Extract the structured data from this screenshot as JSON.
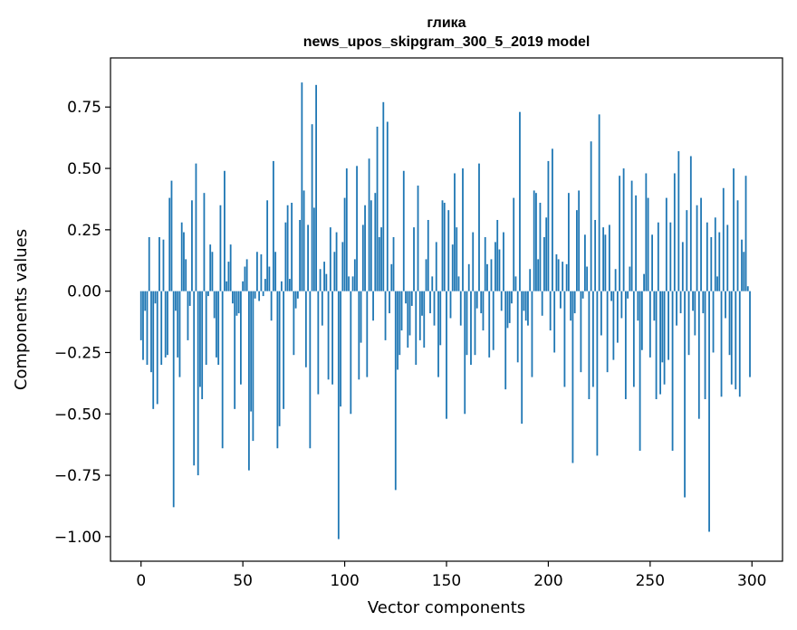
{
  "chart_data": {
    "type": "bar",
    "title": "глика",
    "subtitle": "news_upos_skipgram_300_5_2019 model",
    "xlabel": "Vector components",
    "ylabel": "Components values",
    "xlim": [
      -15,
      315
    ],
    "ylim": [
      -1.1,
      0.95
    ],
    "x_ticks": [
      0,
      50,
      100,
      150,
      200,
      250,
      300
    ],
    "x_tick_labels": [
      "0",
      "50",
      "100",
      "150",
      "200",
      "250",
      "300"
    ],
    "y_ticks": [
      0.75,
      0.5,
      0.25,
      0.0,
      -0.25,
      -0.5,
      -0.75,
      -1.0
    ],
    "y_tick_labels": [
      "0.75",
      "0.50",
      "0.25",
      "0.00",
      "−0.25",
      "−0.50",
      "−0.75",
      "−1.00"
    ],
    "grid": false,
    "bar_color": "#1f77b4",
    "x": "0..299 (component index)",
    "values": [
      -0.2,
      -0.28,
      -0.08,
      -0.3,
      0.22,
      -0.33,
      -0.48,
      -0.05,
      -0.46,
      0.22,
      -0.3,
      0.21,
      -0.27,
      -0.26,
      0.38,
      0.45,
      -0.88,
      -0.08,
      -0.27,
      -0.35,
      0.28,
      0.24,
      0.13,
      -0.2,
      -0.06,
      0.37,
      -0.71,
      0.52,
      -0.75,
      -0.39,
      -0.44,
      0.4,
      -0.3,
      -0.02,
      0.19,
      0.16,
      -0.11,
      -0.27,
      -0.3,
      0.35,
      -0.64,
      0.49,
      0.04,
      0.12,
      0.19,
      -0.05,
      -0.48,
      -0.1,
      -0.09,
      -0.38,
      0.04,
      0.1,
      0.13,
      -0.73,
      -0.49,
      -0.61,
      -0.03,
      0.16,
      -0.04,
      0.15,
      -0.02,
      0.05,
      0.37,
      0.1,
      -0.12,
      0.53,
      0.16,
      -0.64,
      -0.55,
      0.04,
      -0.48,
      0.28,
      0.35,
      0.05,
      0.36,
      -0.26,
      -0.07,
      -0.03,
      0.29,
      0.85,
      0.41,
      -0.31,
      0.27,
      -0.64,
      0.68,
      0.34,
      0.84,
      -0.42,
      0.09,
      -0.14,
      0.12,
      0.07,
      -0.36,
      0.26,
      -0.38,
      0.16,
      0.24,
      -1.01,
      -0.47,
      0.2,
      0.38,
      0.5,
      0.06,
      -0.5,
      0.06,
      0.13,
      0.51,
      -0.36,
      -0.21,
      0.27,
      0.35,
      -0.35,
      0.54,
      0.37,
      -0.12,
      0.4,
      0.67,
      0.22,
      0.26,
      0.77,
      -0.2,
      0.69,
      -0.09,
      0.11,
      0.22,
      -0.81,
      -0.32,
      -0.26,
      -0.16,
      0.49,
      -0.05,
      -0.23,
      -0.18,
      -0.06,
      0.26,
      -0.3,
      0.43,
      -0.2,
      -0.1,
      -0.23,
      0.13,
      0.29,
      -0.09,
      0.06,
      -0.14,
      0.2,
      -0.35,
      -0.22,
      0.37,
      0.36,
      -0.52,
      0.33,
      -0.11,
      0.19,
      0.48,
      0.26,
      0.06,
      -0.14,
      0.5,
      -0.5,
      -0.26,
      0.11,
      -0.3,
      0.24,
      -0.26,
      -0.07,
      0.52,
      -0.09,
      -0.16,
      0.22,
      0.11,
      -0.27,
      0.13,
      -0.24,
      0.2,
      0.29,
      0.17,
      -0.08,
      0.24,
      -0.4,
      -0.15,
      -0.13,
      -0.05,
      0.38,
      0.06,
      -0.29,
      0.73,
      -0.54,
      -0.08,
      -0.12,
      -0.14,
      0.09,
      -0.35,
      0.41,
      0.4,
      0.13,
      0.36,
      -0.1,
      0.22,
      0.3,
      0.53,
      -0.16,
      0.58,
      -0.25,
      0.15,
      0.13,
      -0.07,
      0.12,
      -0.39,
      0.11,
      0.4,
      -0.12,
      -0.7,
      -0.09,
      0.33,
      0.41,
      -0.33,
      -0.03,
      0.23,
      0.1,
      -0.44,
      0.61,
      -0.39,
      0.29,
      -0.67,
      0.72,
      -0.18,
      0.26,
      0.23,
      -0.33,
      0.27,
      -0.04,
      -0.28,
      0.09,
      -0.21,
      0.47,
      -0.11,
      0.5,
      -0.44,
      -0.03,
      0.1,
      0.45,
      -0.39,
      0.39,
      -0.12,
      -0.65,
      -0.24,
      0.07,
      0.48,
      0.38,
      -0.27,
      0.23,
      -0.12,
      -0.44,
      0.28,
      -0.42,
      -0.29,
      -0.38,
      0.38,
      -0.28,
      0.28,
      -0.65,
      0.48,
      -0.14,
      0.57,
      -0.09,
      0.2,
      -0.84,
      0.33,
      -0.26,
      0.55,
      -0.08,
      -0.18,
      0.35,
      -0.52,
      0.38,
      -0.09,
      -0.44,
      0.28,
      -0.98,
      0.22,
      -0.25,
      0.3,
      0.06,
      0.24,
      -0.43,
      0.42,
      -0.11,
      0.27,
      -0.26,
      -0.38,
      0.5,
      -0.4,
      0.37,
      -0.43,
      0.21,
      0.16,
      0.47,
      0.02,
      -0.35
    ]
  }
}
